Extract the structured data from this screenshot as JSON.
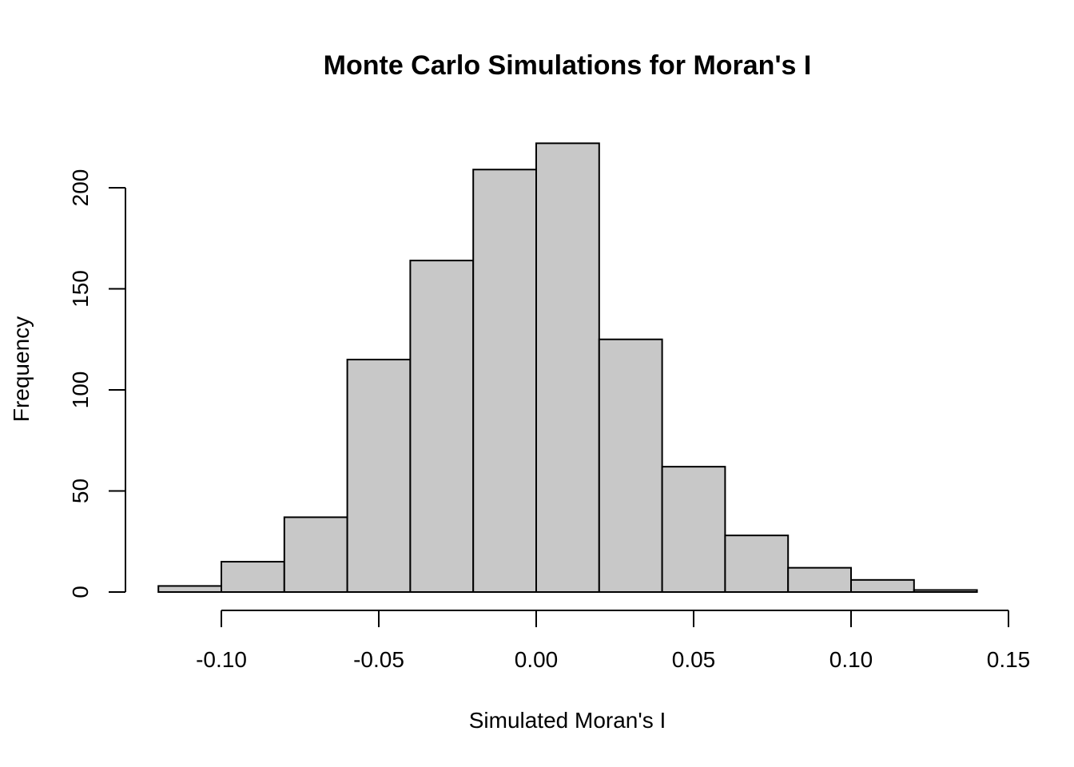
{
  "chart_data": {
    "type": "bar",
    "title": "Monte Carlo Simulations for Moran's I",
    "xlabel": "Simulated Moran's I",
    "ylabel": "Frequency",
    "bins": [
      {
        "start": -0.12,
        "end": -0.1,
        "count": 3
      },
      {
        "start": -0.1,
        "end": -0.08,
        "count": 15
      },
      {
        "start": -0.08,
        "end": -0.06,
        "count": 37
      },
      {
        "start": -0.06,
        "end": -0.04,
        "count": 115
      },
      {
        "start": -0.04,
        "end": -0.02,
        "count": 164
      },
      {
        "start": -0.02,
        "end": 0.0,
        "count": 209
      },
      {
        "start": 0.0,
        "end": 0.02,
        "count": 222
      },
      {
        "start": 0.02,
        "end": 0.04,
        "count": 125
      },
      {
        "start": 0.04,
        "end": 0.06,
        "count": 62
      },
      {
        "start": 0.06,
        "end": 0.08,
        "count": 28
      },
      {
        "start": 0.08,
        "end": 0.1,
        "count": 12
      },
      {
        "start": 0.1,
        "end": 0.12,
        "count": 6
      },
      {
        "start": 0.12,
        "end": 0.14,
        "count": 1
      }
    ],
    "x_ticks": [
      {
        "value": -0.1,
        "label": "-0.10"
      },
      {
        "value": -0.05,
        "label": "-0.05"
      },
      {
        "value": 0.0,
        "label": "0.00"
      },
      {
        "value": 0.05,
        "label": "0.05"
      },
      {
        "value": 0.1,
        "label": "0.10"
      },
      {
        "value": 0.15,
        "label": "0.15"
      }
    ],
    "y_ticks": [
      {
        "value": 0,
        "label": "0"
      },
      {
        "value": 50,
        "label": "50"
      },
      {
        "value": 100,
        "label": "100"
      },
      {
        "value": 150,
        "label": "150"
      },
      {
        "value": 200,
        "label": "200"
      }
    ],
    "xlim": [
      -0.1,
      0.15
    ],
    "ylim": [
      0,
      200
    ],
    "grid": false,
    "bar_color": "#c8c8c8",
    "edge_color": "#000000"
  }
}
